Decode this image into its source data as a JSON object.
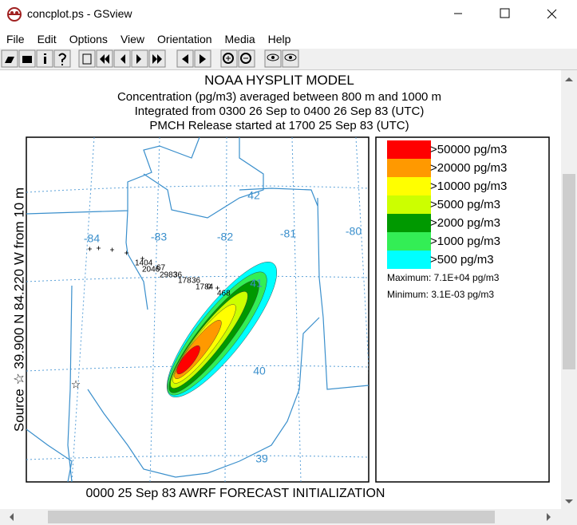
{
  "window": {
    "title": "concplot.ps - GSview"
  },
  "menu": [
    "File",
    "Edit",
    "Options",
    "View",
    "Orientation",
    "Media",
    "Help"
  ],
  "plot": {
    "title": "NOAA HYSPLIT MODEL",
    "subtitle_lines": [
      "Concentration  (pg/m3) averaged between   800 m and  1000 m",
      "Integrated from 0300 26 Sep to 0400 26 Sep 83 (UTC)",
      "PMCH Release started at 1700 25 Sep 83 (UTC)"
    ],
    "source_label": "Source ☆ 39.900  N  84.220  W   from   10 m",
    "footer": "0000 25 Sep 83 AWRF FORECAST INITIALIZATION",
    "legend": {
      "levels": [
        {
          "label": ">50000 pg/m3",
          "color": "#ff0000"
        },
        {
          "label": ">20000 pg/m3",
          "color": "#ff9900"
        },
        {
          "label": ">10000 pg/m3",
          "color": "#ffff00"
        },
        {
          "label": ">5000 pg/m3",
          "color": "#ccff00"
        },
        {
          "label": ">2000 pg/m3",
          "color": "#009900"
        },
        {
          "label": ">1000 pg/m3",
          "color": "#33ee55"
        },
        {
          "label": ">500 pg/m3",
          "color": "#00ffff"
        }
      ],
      "maximum": "Maximum: 7.1E+04 pg/m3",
      "minimum": "Minimum: 3.1E-03 pg/m3"
    },
    "map_labels": {
      "longitudes": [
        "-84",
        "-83",
        "-82",
        "-81",
        "-80"
      ],
      "latitudes": [
        "42",
        "41",
        "40",
        "39"
      ],
      "samples": [
        "1404",
        "2046",
        "67",
        "2983",
        "36",
        "178",
        "36",
        "1784",
        "0",
        "468"
      ]
    }
  }
}
